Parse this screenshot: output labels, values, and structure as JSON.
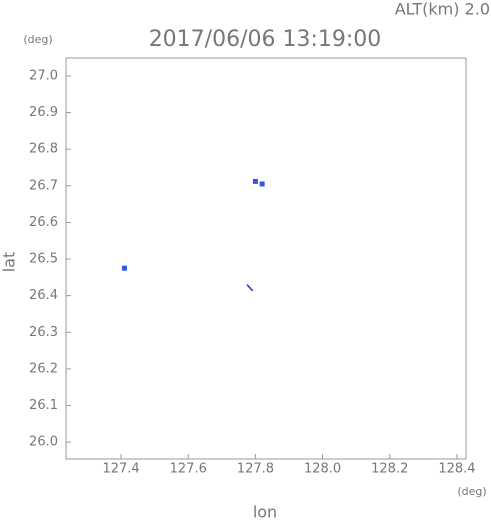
{
  "chart_data": {
    "type": "scatter",
    "title": "2017/06/06 13:19:00",
    "subtitle": "ALT(km) 2.0",
    "ylabel": "lat",
    "yunit": "(deg)",
    "xlabel": "lon",
    "xunit": "(deg)",
    "xlim": [
      127.236,
      128.427
    ],
    "ylim": [
      25.954,
      27.049
    ],
    "xticks": [
      127.4,
      127.6,
      127.8,
      {
        "value": 128.0,
        "label": "128.0"
      },
      128.2,
      128.4
    ],
    "yticks": [
      {
        "value": 26.0,
        "label": "26.0"
      },
      26.1,
      26.2,
      26.3,
      26.4,
      26.5,
      26.6,
      26.7,
      26.8,
      26.9,
      {
        "value": 27.0,
        "label": "27.0"
      }
    ],
    "series": [
      {
        "type": "scatter",
        "color": "#3355ee",
        "x": [
          127.41,
          127.8,
          127.82
        ],
        "values": [
          26.475,
          26.712,
          26.705
        ]
      },
      {
        "type": "line",
        "color": "#2233cc",
        "x": [
          127.775,
          127.792
        ],
        "values": [
          26.43,
          26.413
        ]
      }
    ]
  }
}
